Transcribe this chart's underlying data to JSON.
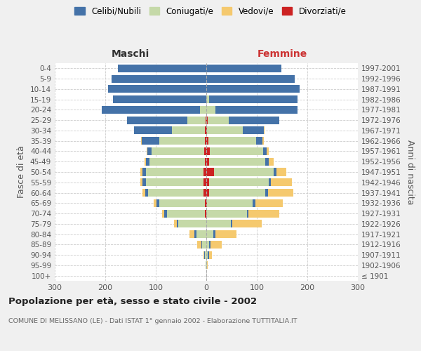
{
  "age_groups": [
    "100+",
    "95-99",
    "90-94",
    "85-89",
    "80-84",
    "75-79",
    "70-74",
    "65-69",
    "60-64",
    "55-59",
    "50-54",
    "45-49",
    "40-44",
    "35-39",
    "30-34",
    "25-29",
    "20-24",
    "15-19",
    "10-14",
    "5-9",
    "0-4"
  ],
  "birth_years": [
    "≤ 1901",
    "1902-1906",
    "1907-1911",
    "1912-1916",
    "1917-1921",
    "1922-1926",
    "1927-1931",
    "1932-1936",
    "1937-1941",
    "1942-1946",
    "1947-1951",
    "1952-1956",
    "1957-1961",
    "1962-1966",
    "1967-1971",
    "1972-1976",
    "1977-1981",
    "1982-1986",
    "1987-1991",
    "1992-1996",
    "1997-2001"
  ],
  "male_celibi": [
    0,
    0,
    1,
    2,
    4,
    4,
    5,
    6,
    6,
    7,
    7,
    7,
    8,
    35,
    75,
    120,
    195,
    185,
    195,
    188,
    175
  ],
  "male_coniugati": [
    0,
    2,
    3,
    8,
    20,
    55,
    75,
    90,
    110,
    115,
    115,
    110,
    105,
    90,
    65,
    35,
    12,
    0,
    0,
    0,
    0
  ],
  "male_vedovi": [
    0,
    0,
    2,
    8,
    10,
    5,
    5,
    5,
    5,
    4,
    3,
    2,
    1,
    1,
    0,
    0,
    0,
    0,
    0,
    0,
    0
  ],
  "male_divorziati": [
    0,
    0,
    0,
    0,
    0,
    0,
    3,
    3,
    5,
    5,
    5,
    3,
    4,
    3,
    3,
    2,
    0,
    0,
    0,
    0,
    0
  ],
  "female_nubili": [
    0,
    0,
    2,
    2,
    4,
    4,
    4,
    5,
    5,
    5,
    6,
    6,
    7,
    12,
    42,
    100,
    162,
    175,
    185,
    175,
    148
  ],
  "female_coniugate": [
    0,
    1,
    3,
    6,
    14,
    48,
    80,
    90,
    112,
    118,
    118,
    112,
    105,
    95,
    70,
    42,
    18,
    5,
    0,
    0,
    0
  ],
  "female_vedove": [
    0,
    2,
    6,
    22,
    42,
    58,
    60,
    55,
    50,
    42,
    20,
    10,
    5,
    3,
    1,
    0,
    0,
    0,
    0,
    0,
    0
  ],
  "female_divorziate": [
    0,
    0,
    0,
    0,
    0,
    0,
    0,
    2,
    5,
    5,
    15,
    5,
    7,
    4,
    2,
    3,
    0,
    0,
    0,
    0,
    0
  ],
  "color_celibi": "#4472a8",
  "color_coniugati": "#c5d9a8",
  "color_vedovi": "#f5c96e",
  "color_divorziati": "#cc2222",
  "legend_labels": [
    "Celibi/Nubili",
    "Coniugati/e",
    "Vedovi/e",
    "Divorziati/e"
  ],
  "title": "Popolazione per età, sesso e stato civile - 2002",
  "subtitle": "COMUNE DI MELISSANO (LE) - Dati ISTAT 1° gennaio 2002 - Elaborazione TUTTITALIA.IT",
  "maschi_label": "Maschi",
  "femmine_label": "Femmine",
  "ylabel_left": "Fasce di età",
  "ylabel_right": "Anni di nascita",
  "xlim": 300,
  "bg_color": "#f0f0f0",
  "plot_bg": "#ffffff",
  "grid_color": "#cccccc"
}
